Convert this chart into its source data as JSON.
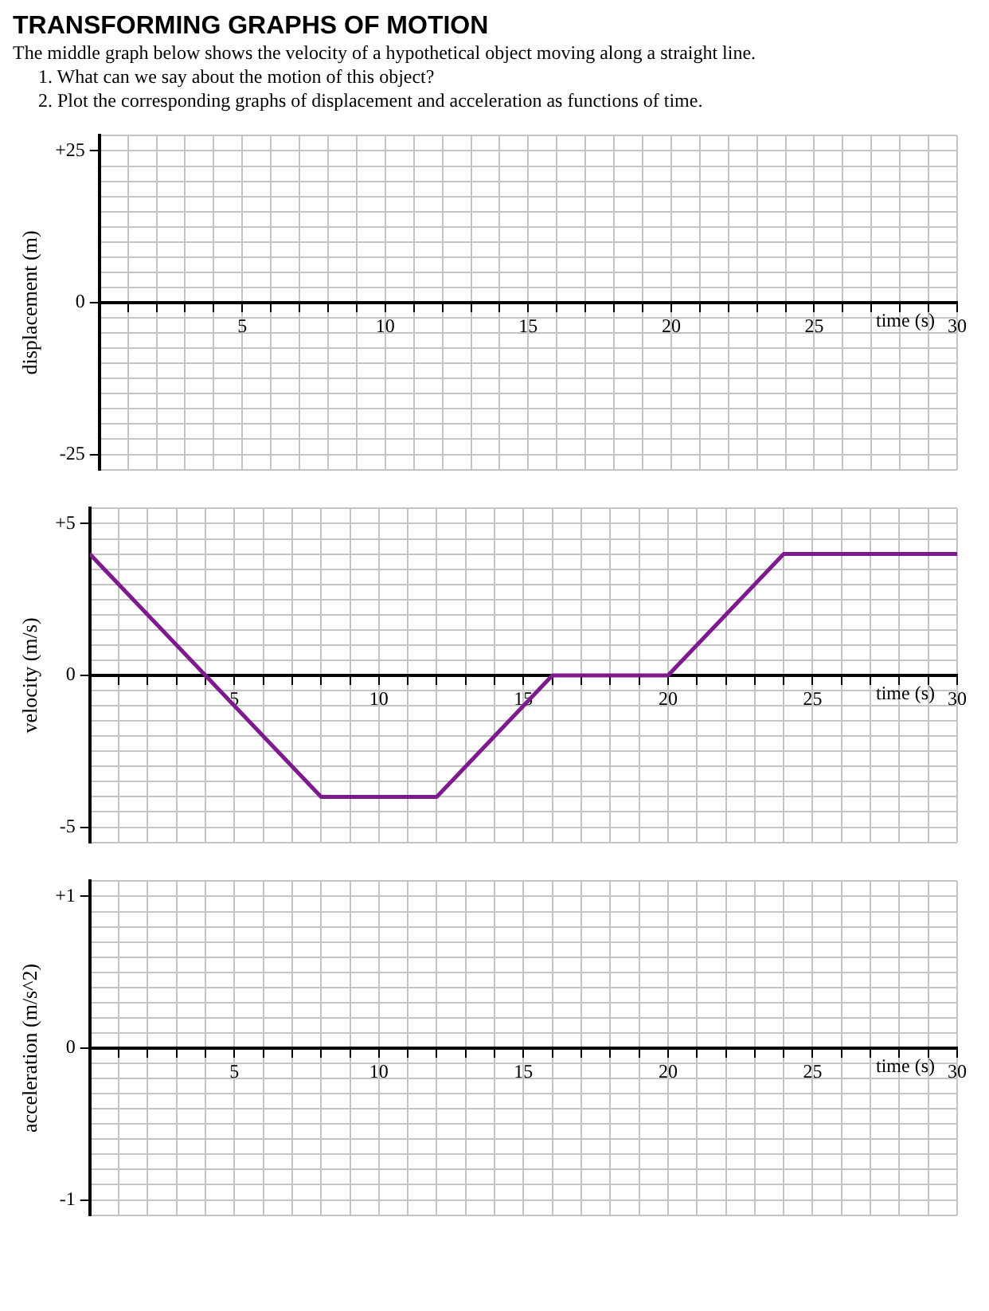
{
  "chart_data": [
    {
      "type": "line",
      "title": "TRANSFORMING GRAPHS OF MOTION",
      "annotations": [
        "The middle graph below shows the velocity of a hypothetical object moving along a straight line.",
        "1. What can we say about the motion of this object?",
        "2. Plot the corresponding graphs of displacement and acceleration as functions of time."
      ],
      "xlabel": "time (s)",
      "ylabel": "displacement (m)",
      "xlim": [
        0,
        30
      ],
      "ylim": [
        -27.5,
        27.5
      ],
      "grid": true,
      "xticks": [
        {
          "value": 0,
          "label": null
        },
        {
          "value": 1,
          "label": null
        },
        {
          "value": 2,
          "label": null
        },
        {
          "value": 3,
          "label": null
        },
        {
          "value": 4,
          "label": null
        },
        5,
        {
          "value": 6,
          "label": null
        },
        {
          "value": 7,
          "label": null
        },
        {
          "value": 8,
          "label": null
        },
        {
          "value": 9,
          "label": null
        },
        10,
        {
          "value": 11,
          "label": null
        },
        {
          "value": 12,
          "label": null
        },
        {
          "value": 13,
          "label": null
        },
        {
          "value": 14,
          "label": null
        },
        15,
        {
          "value": 16,
          "label": null
        },
        {
          "value": 17,
          "label": null
        },
        {
          "value": 18,
          "label": null
        },
        {
          "value": 19,
          "label": null
        },
        20,
        {
          "value": 21,
          "label": null
        },
        {
          "value": 22,
          "label": null
        },
        {
          "value": 23,
          "label": null
        },
        {
          "value": 24,
          "label": null
        },
        25,
        {
          "value": 26,
          "label": null
        },
        {
          "value": 27,
          "label": null
        },
        {
          "value": 28,
          "label": null
        },
        {
          "value": 29,
          "label": null
        },
        30
      ],
      "yticks": [
        {
          "value": -27.5,
          "label": null
        },
        -25,
        {
          "value": -22.5,
          "label": null
        },
        {
          "value": -20,
          "label": null
        },
        {
          "value": -17.5,
          "label": null
        },
        {
          "value": -15,
          "label": null
        },
        {
          "value": -12.5,
          "label": null
        },
        {
          "value": -10,
          "label": null
        },
        {
          "value": -7.5,
          "label": null
        },
        {
          "value": -5,
          "label": null
        },
        {
          "value": -2.5,
          "label": null
        },
        0,
        {
          "value": 2.5,
          "label": null
        },
        {
          "value": 5,
          "label": null
        },
        {
          "value": 7.5,
          "label": null
        },
        {
          "value": 10,
          "label": null
        },
        {
          "value": 12.5,
          "label": null
        },
        {
          "value": 15,
          "label": null
        },
        {
          "value": 17.5,
          "label": null
        },
        {
          "value": 20,
          "label": null
        },
        {
          "value": 22.5,
          "label": null
        },
        {
          "value": 25,
          "label": "+25"
        },
        {
          "value": 27.5,
          "label": null
        }
      ]
    },
    {
      "type": "line",
      "xlabel": "time (s)",
      "ylabel": "velocity (m/s)",
      "x": [
        0,
        4,
        8,
        12,
        16,
        20,
        24,
        30
      ],
      "series": [
        {
          "color": "#7d1b8e",
          "values": [
            4,
            0,
            -4,
            -4,
            0,
            0,
            4,
            4
          ]
        }
      ],
      "xlim": [
        0,
        30
      ],
      "ylim": [
        -5.5,
        5.5
      ],
      "grid": true,
      "marker": "none",
      "xticks": [
        {
          "value": 0,
          "label": null
        },
        {
          "value": 1,
          "label": null
        },
        {
          "value": 2,
          "label": null
        },
        {
          "value": 3,
          "label": null
        },
        {
          "value": 4,
          "label": null
        },
        5,
        {
          "value": 6,
          "label": null
        },
        {
          "value": 7,
          "label": null
        },
        {
          "value": 8,
          "label": null
        },
        {
          "value": 9,
          "label": null
        },
        10,
        {
          "value": 11,
          "label": null
        },
        {
          "value": 12,
          "label": null
        },
        {
          "value": 13,
          "label": null
        },
        {
          "value": 14,
          "label": null
        },
        15,
        {
          "value": 16,
          "label": null
        },
        {
          "value": 17,
          "label": null
        },
        {
          "value": 18,
          "label": null
        },
        {
          "value": 19,
          "label": null
        },
        20,
        {
          "value": 21,
          "label": null
        },
        {
          "value": 22,
          "label": null
        },
        {
          "value": 23,
          "label": null
        },
        {
          "value": 24,
          "label": null
        },
        25,
        {
          "value": 26,
          "label": null
        },
        {
          "value": 27,
          "label": null
        },
        {
          "value": 28,
          "label": null
        },
        {
          "value": 29,
          "label": null
        },
        30
      ],
      "yticks": [
        {
          "value": -5.5,
          "label": null
        },
        -5,
        {
          "value": -4.5,
          "label": null
        },
        {
          "value": -4,
          "label": null
        },
        {
          "value": -3.5,
          "label": null
        },
        {
          "value": -3,
          "label": null
        },
        {
          "value": -2.5,
          "label": null
        },
        {
          "value": -2,
          "label": null
        },
        {
          "value": -1.5,
          "label": null
        },
        {
          "value": -1,
          "label": null
        },
        {
          "value": -0.5,
          "label": null
        },
        0,
        {
          "value": 0.5,
          "label": null
        },
        {
          "value": 1,
          "label": null
        },
        {
          "value": 1.5,
          "label": null
        },
        {
          "value": 2,
          "label": null
        },
        {
          "value": 2.5,
          "label": null
        },
        {
          "value": 3,
          "label": null
        },
        {
          "value": 3.5,
          "label": null
        },
        {
          "value": 4,
          "label": null
        },
        {
          "value": 4.5,
          "label": null
        },
        {
          "value": 5,
          "label": "+5"
        },
        {
          "value": 5.5,
          "label": null
        }
      ]
    },
    {
      "type": "line",
      "xlabel": "time (s)",
      "ylabel": "acceleration (m/s^2)",
      "xlim": [
        0,
        30
      ],
      "ylim": [
        -1.1,
        1.1
      ],
      "grid": true,
      "xticks": [
        {
          "value": 0,
          "label": null
        },
        {
          "value": 1,
          "label": null
        },
        {
          "value": 2,
          "label": null
        },
        {
          "value": 3,
          "label": null
        },
        {
          "value": 4,
          "label": null
        },
        5,
        {
          "value": 6,
          "label": null
        },
        {
          "value": 7,
          "label": null
        },
        {
          "value": 8,
          "label": null
        },
        {
          "value": 9,
          "label": null
        },
        10,
        {
          "value": 11,
          "label": null
        },
        {
          "value": 12,
          "label": null
        },
        {
          "value": 13,
          "label": null
        },
        {
          "value": 14,
          "label": null
        },
        15,
        {
          "value": 16,
          "label": null
        },
        {
          "value": 17,
          "label": null
        },
        {
          "value": 18,
          "label": null
        },
        {
          "value": 19,
          "label": null
        },
        20,
        {
          "value": 21,
          "label": null
        },
        {
          "value": 22,
          "label": null
        },
        {
          "value": 23,
          "label": null
        },
        {
          "value": 24,
          "label": null
        },
        25,
        {
          "value": 26,
          "label": null
        },
        {
          "value": 27,
          "label": null
        },
        {
          "value": 28,
          "label": null
        },
        {
          "value": 29,
          "label": null
        },
        30
      ],
      "yticks": [
        {
          "value": -1.1,
          "label": null
        },
        -1,
        {
          "value": -0.9,
          "label": null
        },
        {
          "value": -0.8,
          "label": null
        },
        {
          "value": -0.7,
          "label": null
        },
        {
          "value": -0.6,
          "label": null
        },
        {
          "value": -0.5,
          "label": null
        },
        {
          "value": -0.4,
          "label": null
        },
        {
          "value": -0.3,
          "label": null
        },
        {
          "value": -0.2,
          "label": null
        },
        {
          "value": -0.1,
          "label": null
        },
        0,
        {
          "value": 0.1,
          "label": null
        },
        {
          "value": 0.2,
          "label": null
        },
        {
          "value": 0.3,
          "label": null
        },
        {
          "value": 0.4,
          "label": null
        },
        {
          "value": 0.5,
          "label": null
        },
        {
          "value": 0.6,
          "label": null
        },
        {
          "value": 0.7,
          "label": null
        },
        {
          "value": 0.8,
          "label": null
        },
        {
          "value": 0.9,
          "label": null
        },
        {
          "value": 1,
          "label": "+1"
        },
        {
          "value": 1.1,
          "label": null
        }
      ]
    }
  ]
}
